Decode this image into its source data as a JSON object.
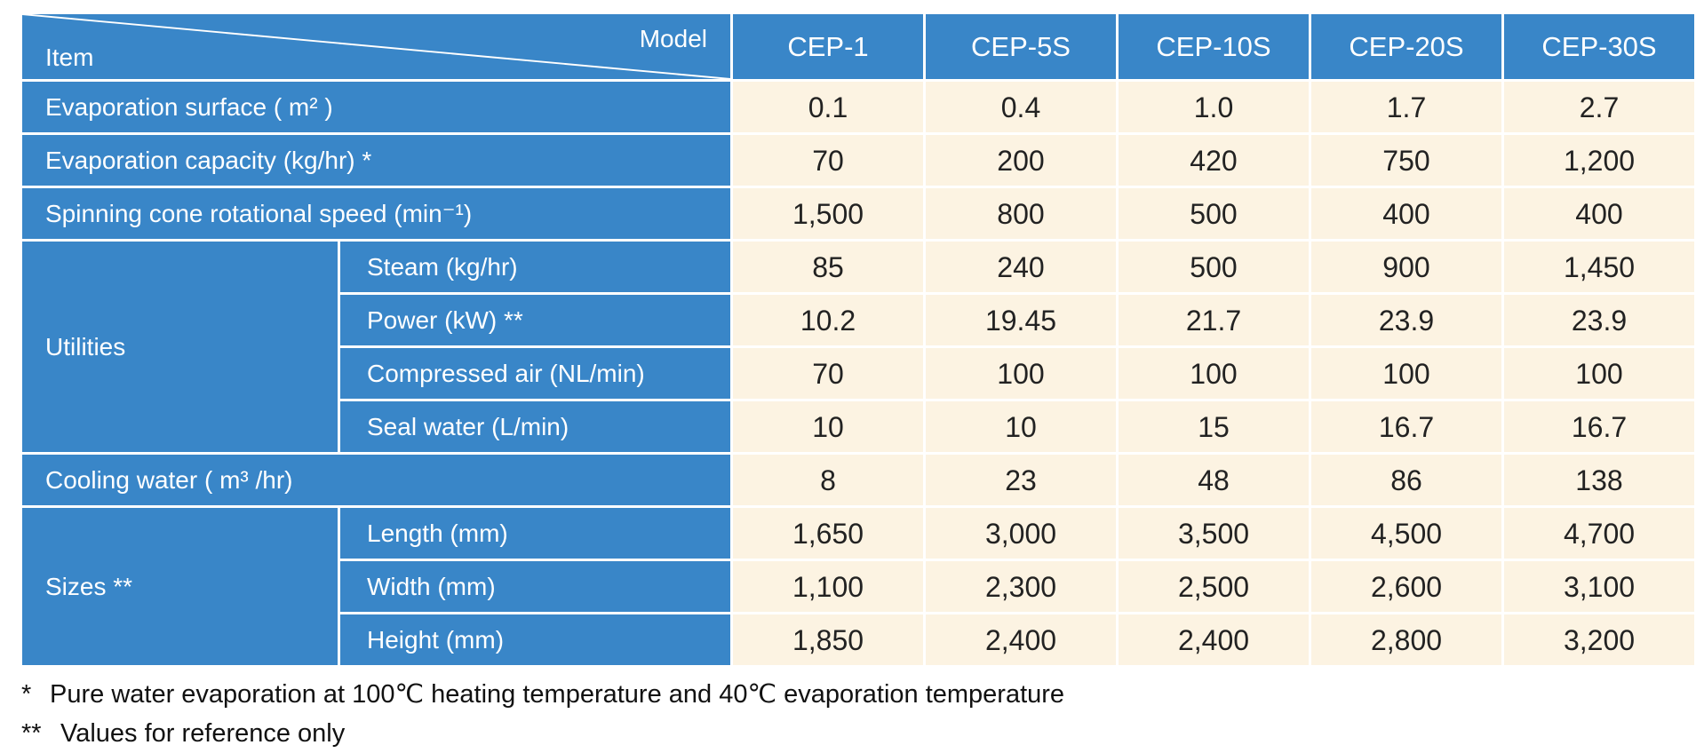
{
  "header": {
    "item_label": "Item",
    "model_label": "Model",
    "models": [
      "CEP-1",
      "CEP-5S",
      "CEP-10S",
      "CEP-20S",
      "CEP-30S"
    ]
  },
  "rows": {
    "evaporation_surface": {
      "label": "Evaporation surface ( m² )",
      "values": [
        "0.1",
        "0.4",
        "1.0",
        "1.7",
        "2.7"
      ]
    },
    "evaporation_capacity": {
      "label": "Evaporation capacity (kg/hr) *",
      "values": [
        "70",
        "200",
        "420",
        "750",
        "1,200"
      ]
    },
    "spinning_cone_speed": {
      "label": "Spinning cone rotational speed (min⁻¹)",
      "values": [
        "1,500",
        "800",
        "500",
        "400",
        "400"
      ]
    },
    "utilities": {
      "label": "Utilities",
      "steam": {
        "label": "Steam (kg/hr)",
        "values": [
          "85",
          "240",
          "500",
          "900",
          "1,450"
        ]
      },
      "power": {
        "label": "Power (kW) **",
        "values": [
          "10.2",
          "19.45",
          "21.7",
          "23.9",
          "23.9"
        ]
      },
      "compressed_air": {
        "label": "Compressed air (NL/min)",
        "values": [
          "70",
          "100",
          "100",
          "100",
          "100"
        ]
      },
      "seal_water": {
        "label": "Seal water (L/min)",
        "values": [
          "10",
          "10",
          "15",
          "16.7",
          "16.7"
        ]
      }
    },
    "cooling_water": {
      "label": "Cooling water ( m³ /hr)",
      "values": [
        "8",
        "23",
        "48",
        "86",
        "138"
      ]
    },
    "sizes": {
      "label": "Sizes **",
      "length": {
        "label": "Length (mm)",
        "values": [
          "1,650",
          "3,000",
          "3,500",
          "4,500",
          "4,700"
        ]
      },
      "width": {
        "label": "Width (mm)",
        "values": [
          "1,100",
          "2,300",
          "2,500",
          "2,600",
          "3,100"
        ]
      },
      "height": {
        "label": "Height (mm)",
        "values": [
          "1,850",
          "2,400",
          "2,400",
          "2,800",
          "3,200"
        ]
      }
    }
  },
  "notes": {
    "note1_mark": "*",
    "note1_text": "Pure water evaporation at 100℃ heating temperature and 40℃ evaporation temperature",
    "note2_mark": "**",
    "note2_text": "Values for reference only"
  },
  "colors": {
    "header_blue": "#3986c8",
    "value_cream": "#fcf3e2",
    "grid_white": "#ffffff"
  }
}
